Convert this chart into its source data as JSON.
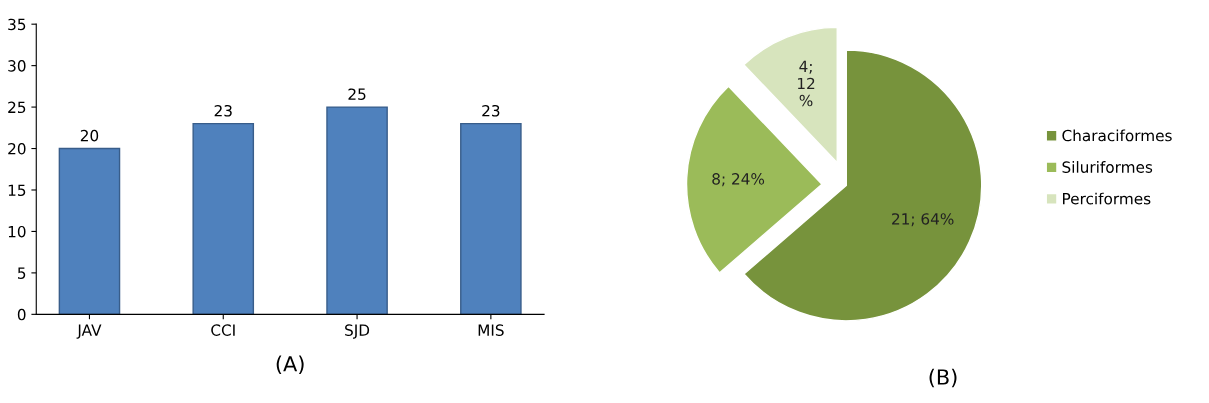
{
  "chart_data": [
    {
      "type": "bar",
      "xlabel": "(A)",
      "categories": [
        "JAV",
        "CCI",
        "SJD",
        "MIS"
      ],
      "values": [
        20,
        23,
        25,
        23
      ],
      "color": "#4f81bd",
      "ylim": [
        0,
        35
      ],
      "yticks": [
        0,
        5,
        10,
        15,
        20,
        25,
        30,
        35
      ],
      "data_labels": true,
      "grid": false
    },
    {
      "type": "pie",
      "categories": [
        "Characiformes",
        "Siluriformes",
        "Perciformes"
      ],
      "values": [
        21,
        8,
        4
      ],
      "colors": [
        "#77933c",
        "#9bbb59",
        "#d7e4bd"
      ],
      "value_labels": [
        "21; 64%",
        "8; 24%",
        "4;\n12\n%"
      ],
      "legend": "right",
      "annotations": [
        "(B)"
      ]
    }
  ]
}
